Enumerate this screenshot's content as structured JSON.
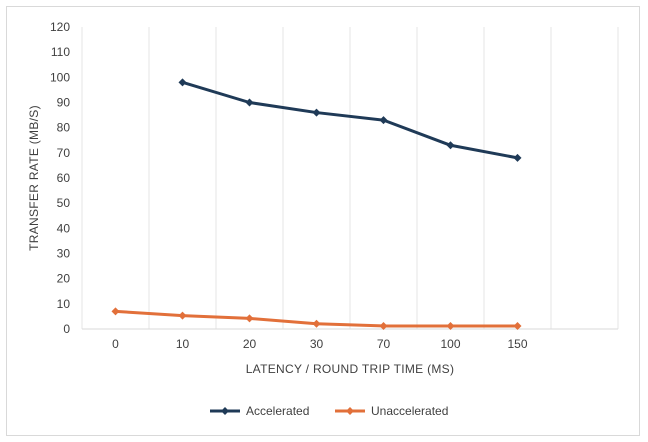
{
  "chart_data": {
    "type": "line",
    "title": "",
    "xlabel": "LATENCY / ROUND TRIP TIME (MS)",
    "ylabel": "TRANSFER RATE (MB/S)",
    "categories": [
      "0",
      "10",
      "20",
      "30",
      "70",
      "100",
      "150"
    ],
    "ylim": [
      0,
      120
    ],
    "yticks": [
      0,
      10,
      20,
      30,
      40,
      50,
      60,
      70,
      80,
      90,
      100,
      110,
      120
    ],
    "grid": "vertical",
    "legend_position": "bottom",
    "series": [
      {
        "name": "Accelerated",
        "color": "#1f3a57",
        "values": [
          null,
          98,
          90,
          86,
          83,
          73,
          68
        ]
      },
      {
        "name": "Unaccelerated",
        "color": "#e2703a",
        "values": [
          7,
          5.3,
          4.2,
          2.1,
          1.2,
          1.2,
          1.2
        ]
      }
    ]
  }
}
